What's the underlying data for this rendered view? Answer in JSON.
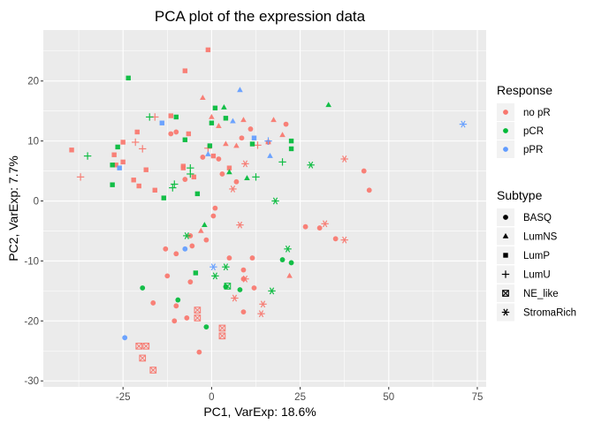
{
  "chart_data": {
    "type": "scatter",
    "title": "PCA plot of the expression data",
    "xlabel": "PC1, VarExp: 18.6%",
    "ylabel": "PC2, VarExp: 7.7%",
    "xlim": [
      -47.5,
      77.5
    ],
    "ylim": [
      -31,
      28.5
    ],
    "xticks": [
      -25,
      0,
      25,
      50,
      75
    ],
    "yticks": [
      -30,
      -20,
      -10,
      0,
      10,
      20
    ],
    "xtick_labels": [
      "-25",
      "0",
      "25",
      "50",
      "75"
    ],
    "ytick_labels": [
      "-30",
      "-20",
      "-10",
      "0",
      "10",
      "20"
    ],
    "grid": true,
    "legend_placement": "right",
    "legends": {
      "color": {
        "title": "Response",
        "entries": [
          {
            "label": "no pR",
            "color": "#F8766D"
          },
          {
            "label": "pCR",
            "color": "#00BA38"
          },
          {
            "label": "pPR",
            "color": "#619CFF"
          }
        ]
      },
      "shape": {
        "title": "Subtype",
        "entries": [
          {
            "label": "BASQ",
            "shape": "circle"
          },
          {
            "label": "LumNS",
            "shape": "triangle"
          },
          {
            "label": "LumP",
            "shape": "square"
          },
          {
            "label": "LumU",
            "shape": "plus"
          },
          {
            "label": "NE_like",
            "shape": "boxed-x"
          },
          {
            "label": "StromaRich",
            "shape": "asterisk"
          }
        ]
      }
    },
    "points": [
      {
        "x": -1,
        "y": 25.2,
        "response": "no pR",
        "subtype": "LumP"
      },
      {
        "x": -7.5,
        "y": 21.7,
        "response": "no pR",
        "subtype": "LumP"
      },
      {
        "x": -11.5,
        "y": 14.2,
        "response": "no pR",
        "subtype": "LumP"
      },
      {
        "x": -39.5,
        "y": 8.5,
        "response": "no pR",
        "subtype": "LumP"
      },
      {
        "x": -27.5,
        "y": 7.7,
        "response": "no pR",
        "subtype": "LumP"
      },
      {
        "x": -25,
        "y": 6.5,
        "response": "no pR",
        "subtype": "LumP"
      },
      {
        "x": -18.5,
        "y": 5.2,
        "response": "no pR",
        "subtype": "LumP"
      },
      {
        "x": -22,
        "y": 3.5,
        "response": "no pR",
        "subtype": "LumP"
      },
      {
        "x": -16,
        "y": 1.8,
        "response": "no pR",
        "subtype": "LumP"
      },
      {
        "x": -20.5,
        "y": 2.5,
        "response": "no pR",
        "subtype": "LumP"
      },
      {
        "x": -8,
        "y": 5.8,
        "response": "no pR",
        "subtype": "LumP"
      },
      {
        "x": 5,
        "y": 5.5,
        "response": "no pR",
        "subtype": "LumP"
      },
      {
        "x": -25,
        "y": 9.8,
        "response": "no pR",
        "subtype": "LumP"
      },
      {
        "x": -21,
        "y": 11.5,
        "response": "no pR",
        "subtype": "LumP"
      },
      {
        "x": -6.5,
        "y": 11.2,
        "response": "no pR",
        "subtype": "LumP"
      },
      {
        "x": -27,
        "y": 6,
        "response": "no pR",
        "subtype": "LumP"
      },
      {
        "x": 0.5,
        "y": 7.5,
        "response": "no pR",
        "subtype": "LumP"
      },
      {
        "x": -8,
        "y": 5.5,
        "response": "no pR",
        "subtype": "LumP"
      },
      {
        "x": -5,
        "y": 4,
        "response": "no pR",
        "subtype": "LumP"
      },
      {
        "x": -2.5,
        "y": 17.2,
        "response": "no pR",
        "subtype": "LumNS"
      },
      {
        "x": 0,
        "y": 14,
        "response": "no pR",
        "subtype": "LumNS"
      },
      {
        "x": 2,
        "y": 12.5,
        "response": "no pR",
        "subtype": "LumNS"
      },
      {
        "x": 9,
        "y": 13.5,
        "response": "no pR",
        "subtype": "LumNS"
      },
      {
        "x": 17.5,
        "y": 13.5,
        "response": "no pR",
        "subtype": "LumNS"
      },
      {
        "x": 4,
        "y": 9.5,
        "response": "no pR",
        "subtype": "LumNS"
      },
      {
        "x": 7,
        "y": 9.2,
        "response": "no pR",
        "subtype": "LumNS"
      },
      {
        "x": 16,
        "y": 9.8,
        "response": "no pR",
        "subtype": "LumNS"
      },
      {
        "x": 20,
        "y": 11,
        "response": "no pR",
        "subtype": "LumNS"
      },
      {
        "x": -3,
        "y": -5,
        "response": "no pR",
        "subtype": "LumNS"
      },
      {
        "x": 22,
        "y": -12.5,
        "response": "no pR",
        "subtype": "LumNS"
      },
      {
        "x": 21,
        "y": 12.8,
        "response": "no pR",
        "subtype": "BASQ"
      },
      {
        "x": 11,
        "y": 12,
        "response": "no pR",
        "subtype": "BASQ"
      },
      {
        "x": -10,
        "y": 11.5,
        "response": "no pR",
        "subtype": "BASQ"
      },
      {
        "x": -11.5,
        "y": 11.2,
        "response": "no pR",
        "subtype": "BASQ"
      },
      {
        "x": 8.5,
        "y": 10.5,
        "response": "no pR",
        "subtype": "BASQ"
      },
      {
        "x": 16,
        "y": 9.8,
        "response": "no pR",
        "subtype": "BASQ"
      },
      {
        "x": 2,
        "y": 7,
        "response": "no pR",
        "subtype": "BASQ"
      },
      {
        "x": -2.5,
        "y": 7.3,
        "response": "no pR",
        "subtype": "BASQ"
      },
      {
        "x": 3,
        "y": 4.5,
        "response": "no pR",
        "subtype": "BASQ"
      },
      {
        "x": -7.5,
        "y": 3.6,
        "response": "no pR",
        "subtype": "BASQ"
      },
      {
        "x": 1,
        "y": -1.2,
        "response": "no pR",
        "subtype": "BASQ"
      },
      {
        "x": 0.5,
        "y": -2.5,
        "response": "no pR",
        "subtype": "BASQ"
      },
      {
        "x": 7,
        "y": 3.2,
        "response": "no pR",
        "subtype": "BASQ"
      },
      {
        "x": 43,
        "y": 5,
        "response": "no pR",
        "subtype": "BASQ"
      },
      {
        "x": 44.5,
        "y": 1.8,
        "response": "no pR",
        "subtype": "BASQ"
      },
      {
        "x": 26.5,
        "y": -4.3,
        "response": "no pR",
        "subtype": "BASQ"
      },
      {
        "x": 30.5,
        "y": -4.5,
        "response": "no pR",
        "subtype": "BASQ"
      },
      {
        "x": 35,
        "y": -6.3,
        "response": "no pR",
        "subtype": "BASQ"
      },
      {
        "x": -6,
        "y": -5.8,
        "response": "no pR",
        "subtype": "BASQ"
      },
      {
        "x": -1.5,
        "y": -6.5,
        "response": "no pR",
        "subtype": "BASQ"
      },
      {
        "x": -5.5,
        "y": -7.5,
        "response": "no pR",
        "subtype": "BASQ"
      },
      {
        "x": -13,
        "y": -8,
        "response": "no pR",
        "subtype": "BASQ"
      },
      {
        "x": -10,
        "y": -8.8,
        "response": "no pR",
        "subtype": "BASQ"
      },
      {
        "x": 5,
        "y": -9.5,
        "response": "no pR",
        "subtype": "BASQ"
      },
      {
        "x": 11.5,
        "y": -9.5,
        "response": "no pR",
        "subtype": "BASQ"
      },
      {
        "x": 9,
        "y": -11.5,
        "response": "no pR",
        "subtype": "BASQ"
      },
      {
        "x": -12.5,
        "y": -12.5,
        "response": "no pR",
        "subtype": "BASQ"
      },
      {
        "x": -6,
        "y": -13.5,
        "response": "no pR",
        "subtype": "BASQ"
      },
      {
        "x": 12,
        "y": -14.5,
        "response": "no pR",
        "subtype": "BASQ"
      },
      {
        "x": -16.5,
        "y": -17,
        "response": "no pR",
        "subtype": "BASQ"
      },
      {
        "x": -10,
        "y": -17.5,
        "response": "no pR",
        "subtype": "BASQ"
      },
      {
        "x": -10.5,
        "y": -20,
        "response": "no pR",
        "subtype": "BASQ"
      },
      {
        "x": -7,
        "y": -19.5,
        "response": "no pR",
        "subtype": "BASQ"
      },
      {
        "x": -3.5,
        "y": -25.2,
        "response": "no pR",
        "subtype": "BASQ"
      },
      {
        "x": 9,
        "y": -18.5,
        "response": "no pR",
        "subtype": "BASQ"
      },
      {
        "x": 9,
        "y": -13,
        "response": "no pR",
        "subtype": "BASQ"
      },
      {
        "x": -37,
        "y": 4,
        "response": "no pR",
        "subtype": "LumU"
      },
      {
        "x": -16,
        "y": 14,
        "response": "no pR",
        "subtype": "LumU"
      },
      {
        "x": -21.5,
        "y": 9.8,
        "response": "no pR",
        "subtype": "LumU"
      },
      {
        "x": -19.5,
        "y": 8.7,
        "response": "no pR",
        "subtype": "LumU"
      },
      {
        "x": -1,
        "y": 8.8,
        "response": "no pR",
        "subtype": "LumU"
      },
      {
        "x": 13,
        "y": 9.3,
        "response": "no pR",
        "subtype": "LumU"
      },
      {
        "x": -20.5,
        "y": -24.2,
        "response": "no pR",
        "subtype": "NE_like"
      },
      {
        "x": -18.5,
        "y": -24.2,
        "response": "no pR",
        "subtype": "NE_like"
      },
      {
        "x": -19.5,
        "y": -26.2,
        "response": "no pR",
        "subtype": "NE_like"
      },
      {
        "x": -16.5,
        "y": -28.2,
        "response": "no pR",
        "subtype": "NE_like"
      },
      {
        "x": -4,
        "y": -18.2,
        "response": "no pR",
        "subtype": "NE_like"
      },
      {
        "x": 3,
        "y": -21.2,
        "response": "no pR",
        "subtype": "NE_like"
      },
      {
        "x": 3,
        "y": -22.5,
        "response": "no pR",
        "subtype": "NE_like"
      },
      {
        "x": -4,
        "y": -19.5,
        "response": "no pR",
        "subtype": "NE_like"
      },
      {
        "x": 37.5,
        "y": 7,
        "response": "no pR",
        "subtype": "StromaRich"
      },
      {
        "x": 9.5,
        "y": 6.2,
        "response": "no pR",
        "subtype": "StromaRich"
      },
      {
        "x": 6,
        "y": 2,
        "response": "no pR",
        "subtype": "StromaRich"
      },
      {
        "x": 8,
        "y": -4,
        "response": "no pR",
        "subtype": "StromaRich"
      },
      {
        "x": 32,
        "y": -3.8,
        "response": "no pR",
        "subtype": "StromaRich"
      },
      {
        "x": 37.5,
        "y": -6.5,
        "response": "no pR",
        "subtype": "StromaRich"
      },
      {
        "x": 9.5,
        "y": -13,
        "response": "no pR",
        "subtype": "StromaRich"
      },
      {
        "x": 14,
        "y": -18.8,
        "response": "no pR",
        "subtype": "StromaRich"
      },
      {
        "x": 14.5,
        "y": -17.2,
        "response": "no pR",
        "subtype": "StromaRich"
      },
      {
        "x": 6.5,
        "y": -16.2,
        "response": "no pR",
        "subtype": "StromaRich"
      },
      {
        "x": -23.5,
        "y": 20.5,
        "response": "pCR",
        "subtype": "LumP"
      },
      {
        "x": -10,
        "y": 14,
        "response": "pCR",
        "subtype": "LumP"
      },
      {
        "x": -28,
        "y": 6,
        "response": "pCR",
        "subtype": "LumP"
      },
      {
        "x": -28,
        "y": 2.7,
        "response": "pCR",
        "subtype": "LumP"
      },
      {
        "x": 0,
        "y": 13,
        "response": "pCR",
        "subtype": "LumP"
      },
      {
        "x": -7.5,
        "y": 10.2,
        "response": "pCR",
        "subtype": "LumP"
      },
      {
        "x": -0.5,
        "y": 9.2,
        "response": "pCR",
        "subtype": "LumP"
      },
      {
        "x": 11.5,
        "y": 9.5,
        "response": "pCR",
        "subtype": "LumP"
      },
      {
        "x": 22.5,
        "y": 10,
        "response": "pCR",
        "subtype": "LumP"
      },
      {
        "x": 22.5,
        "y": 8.7,
        "response": "pCR",
        "subtype": "LumP"
      },
      {
        "x": 1,
        "y": 15.5,
        "response": "pCR",
        "subtype": "LumP"
      },
      {
        "x": -26.5,
        "y": 9,
        "response": "pCR",
        "subtype": "LumP"
      },
      {
        "x": -13.5,
        "y": 0.5,
        "response": "pCR",
        "subtype": "LumP"
      },
      {
        "x": -4,
        "y": 1.2,
        "response": "pCR",
        "subtype": "LumP"
      },
      {
        "x": -4.5,
        "y": -12,
        "response": "pCR",
        "subtype": "LumP"
      },
      {
        "x": 4,
        "y": 13.8,
        "response": "pCR",
        "subtype": "LumP"
      },
      {
        "x": 3.5,
        "y": 15.6,
        "response": "pCR",
        "subtype": "LumNS"
      },
      {
        "x": 33,
        "y": 16,
        "response": "pCR",
        "subtype": "LumNS"
      },
      {
        "x": 5,
        "y": 4.8,
        "response": "pCR",
        "subtype": "LumNS"
      },
      {
        "x": 10,
        "y": 3.8,
        "response": "pCR",
        "subtype": "LumNS"
      },
      {
        "x": -2,
        "y": -4,
        "response": "pCR",
        "subtype": "LumNS"
      },
      {
        "x": -19.5,
        "y": -14.5,
        "response": "pCR",
        "subtype": "BASQ"
      },
      {
        "x": -9.5,
        "y": -16.5,
        "response": "pCR",
        "subtype": "BASQ"
      },
      {
        "x": -1.5,
        "y": -21,
        "response": "pCR",
        "subtype": "BASQ"
      },
      {
        "x": 4,
        "y": -14.3,
        "response": "pCR",
        "subtype": "BASQ"
      },
      {
        "x": 8,
        "y": -14.8,
        "response": "pCR",
        "subtype": "BASQ"
      },
      {
        "x": 20,
        "y": -9.8,
        "response": "pCR",
        "subtype": "BASQ"
      },
      {
        "x": 22.5,
        "y": -10.3,
        "response": "pCR",
        "subtype": "BASQ"
      },
      {
        "x": -35,
        "y": 7.5,
        "response": "pCR",
        "subtype": "LumU"
      },
      {
        "x": -17.5,
        "y": 14,
        "response": "pCR",
        "subtype": "LumU"
      },
      {
        "x": -6,
        "y": 5.5,
        "response": "pCR",
        "subtype": "LumU"
      },
      {
        "x": -6,
        "y": 4.5,
        "response": "pCR",
        "subtype": "LumU"
      },
      {
        "x": -10.5,
        "y": 2.8,
        "response": "pCR",
        "subtype": "LumU"
      },
      {
        "x": -11,
        "y": 2.2,
        "response": "pCR",
        "subtype": "LumU"
      },
      {
        "x": 12.5,
        "y": 4,
        "response": "pCR",
        "subtype": "LumU"
      },
      {
        "x": 20,
        "y": 6.5,
        "response": "pCR",
        "subtype": "LumU"
      },
      {
        "x": 4.5,
        "y": -14.2,
        "response": "pCR",
        "subtype": "NE_like"
      },
      {
        "x": 28,
        "y": 6,
        "response": "pCR",
        "subtype": "StromaRich"
      },
      {
        "x": 18,
        "y": 0,
        "response": "pCR",
        "subtype": "StromaRich"
      },
      {
        "x": -7,
        "y": -5.8,
        "response": "pCR",
        "subtype": "StromaRich"
      },
      {
        "x": 4,
        "y": -11,
        "response": "pCR",
        "subtype": "StromaRich"
      },
      {
        "x": 21.5,
        "y": -8,
        "response": "pCR",
        "subtype": "StromaRich"
      },
      {
        "x": 17,
        "y": -15,
        "response": "pCR",
        "subtype": "StromaRich"
      },
      {
        "x": 1,
        "y": -12.5,
        "response": "pCR",
        "subtype": "StromaRich"
      },
      {
        "x": 8,
        "y": 18.5,
        "response": "pPR",
        "subtype": "LumNS"
      },
      {
        "x": 16.5,
        "y": 7.5,
        "response": "pPR",
        "subtype": "LumNS"
      },
      {
        "x": 6,
        "y": 13.3,
        "response": "pPR",
        "subtype": "LumNS"
      },
      {
        "x": 12,
        "y": 10.5,
        "response": "pPR",
        "subtype": "LumP"
      },
      {
        "x": -14,
        "y": 13,
        "response": "pPR",
        "subtype": "LumP"
      },
      {
        "x": -26,
        "y": 5.5,
        "response": "pPR",
        "subtype": "LumP"
      },
      {
        "x": -1,
        "y": 7.8,
        "response": "pPR",
        "subtype": "LumNS"
      },
      {
        "x": 16,
        "y": 10,
        "response": "pPR",
        "subtype": "LumU"
      },
      {
        "x": -7.5,
        "y": -8,
        "response": "pPR",
        "subtype": "BASQ"
      },
      {
        "x": -24.5,
        "y": -22.8,
        "response": "pPR",
        "subtype": "BASQ"
      },
      {
        "x": 71,
        "y": 12.8,
        "response": "pPR",
        "subtype": "StromaRich"
      },
      {
        "x": 0.5,
        "y": -11,
        "response": "pPR",
        "subtype": "StromaRich"
      }
    ]
  }
}
